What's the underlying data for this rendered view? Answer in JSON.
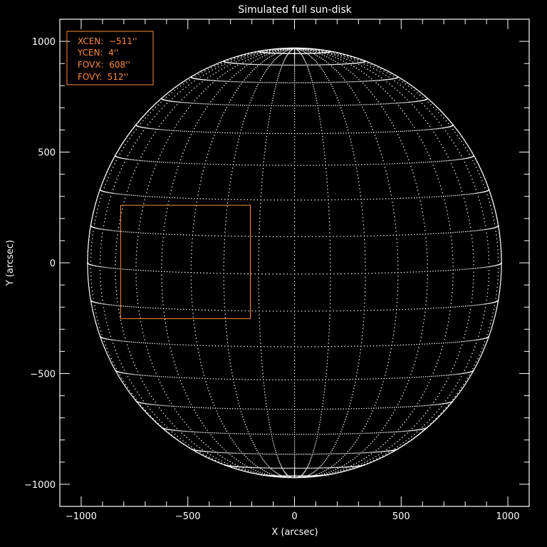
{
  "chart_data": {
    "type": "scatter",
    "title": "Simulated full sun-disk",
    "xlabel": "X (arcsec)",
    "ylabel": "Y (arcsec)",
    "xlim": [
      -1100,
      1100
    ],
    "ylim": [
      -1100,
      1100
    ],
    "x_ticks": [
      -1000,
      -500,
      0,
      500,
      1000
    ],
    "y_ticks": [
      -1000,
      -500,
      0,
      500,
      1000
    ],
    "x_tick_labels": [
      "−1000",
      "−500",
      "0",
      "500",
      "1000"
    ],
    "y_tick_labels": [
      "−1000",
      "−500",
      "0",
      "500",
      "1000"
    ],
    "minor_tick_step": 100,
    "grid": false,
    "solar_radius": 970,
    "b0_deg": 3,
    "heliographic_grid_step_deg": 10,
    "fov_box": {
      "xcen": -511,
      "ycen": 4,
      "fovx": 608,
      "fovy": 512
    },
    "legend": {
      "placement": "top-left",
      "entries": [
        "XCEN:  −511''",
        "YCEN:  4''",
        "FOVX:  608''",
        "FOVY:  512''"
      ]
    },
    "colors": {
      "background": "#000000",
      "foreground": "#ffffff",
      "accent": "#ff8a3d"
    }
  }
}
